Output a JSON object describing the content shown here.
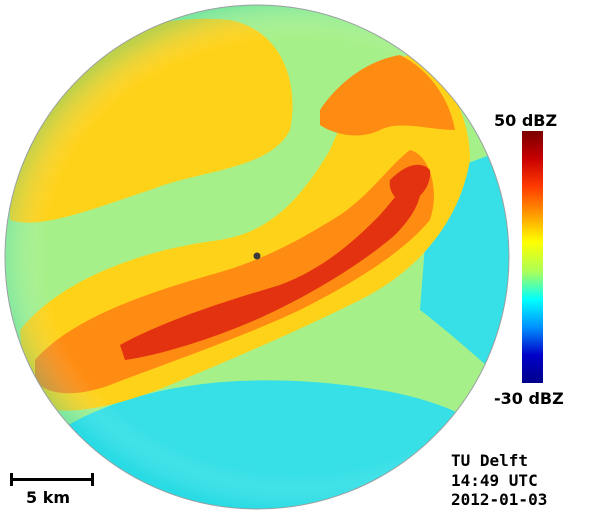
{
  "colorbar": {
    "max_label": "50 dBZ",
    "min_label": "-30 dBZ",
    "range_dbz": [
      -30,
      50
    ],
    "colors": [
      "#7a0000",
      "#c80000",
      "#ff3a00",
      "#ff9a00",
      "#ffff00",
      "#a8ff5a",
      "#00ffff",
      "#0090ff",
      "#0000c8",
      "#00008a"
    ]
  },
  "scale_bar": {
    "label": "5 km"
  },
  "credits": {
    "organization": "TU Delft",
    "time": "14:49 UTC",
    "date": "2012-01-03"
  },
  "radar": {
    "background_color": "#a6f08a",
    "band_outer_color": "#ffd21a",
    "band_mid_color": "#ff8c12",
    "band_core_color": "#e33210",
    "low_echo_color": "#36e0e6",
    "site_marker_color": "#3b3b3b"
  }
}
